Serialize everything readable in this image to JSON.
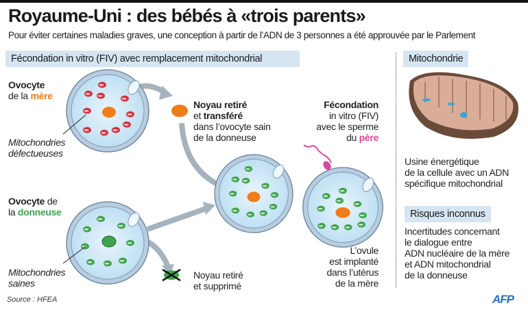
{
  "header": {
    "title": "Royaume-Uni : des bébés à «trois parents»",
    "subtitle": "Pour éviter certaines maladies graves, une conception à partir de l’ADN de 3 personnes a été approuvée par le Parlement"
  },
  "left_section": {
    "heading": "Fécondation in vitro (FIV) avec remplacement mitochondrial",
    "mother": {
      "label_bold": "Ovocyte",
      "label_pre": "de la ",
      "label_accent": "mère",
      "callout_line1": "Mitochondries",
      "callout_line2": "défectueuses"
    },
    "donor": {
      "label_bold": "Ovocyte",
      "label_post": " de",
      "label_pre": "la ",
      "label_accent": "donneuse",
      "callout_line1": "Mitochondries",
      "callout_line2": "saines"
    },
    "transfer": {
      "line1": "Noyau retiré",
      "line2_pre": "et ",
      "line2_bold": "transféré",
      "line3": "dans l’ovocyte sain",
      "line4": "de la donneuse"
    },
    "removed": {
      "line1": "Noyau retiré",
      "line2": "et supprimé"
    },
    "fertilization": {
      "line1": "Fécondation",
      "line2": "in vitro (FIV)",
      "line3": "avec le sperme",
      "line4_pre": "du ",
      "line4_accent": "père"
    },
    "implant": {
      "line1": "L’ovule",
      "line2": "est implanté",
      "line3": "dans l’utérus",
      "line4": "de la mère"
    }
  },
  "right_section": {
    "heading": "Mitochondrie",
    "description": [
      "Usine énergétique",
      "de la cellule avec un ADN",
      "spécifique mitochondrial"
    ],
    "risks_heading": "Risques inconnus",
    "risks": [
      "Incertitudes concernant",
      "le dialogue entre",
      "ADN nucléaire de la mère",
      "et ADN mitochondrial",
      "de la donneuse"
    ]
  },
  "footer": {
    "source": "Source : HFEA",
    "logo": "AFP"
  },
  "colors": {
    "mother": "#ee7d1a",
    "donor": "#3fa34d",
    "father": "#d9489a",
    "header_bg": "#d5e5f2",
    "cell": "#cfe6f5",
    "defective_mito": "#d4313f",
    "healthy_mito": "#3fa34d"
  }
}
